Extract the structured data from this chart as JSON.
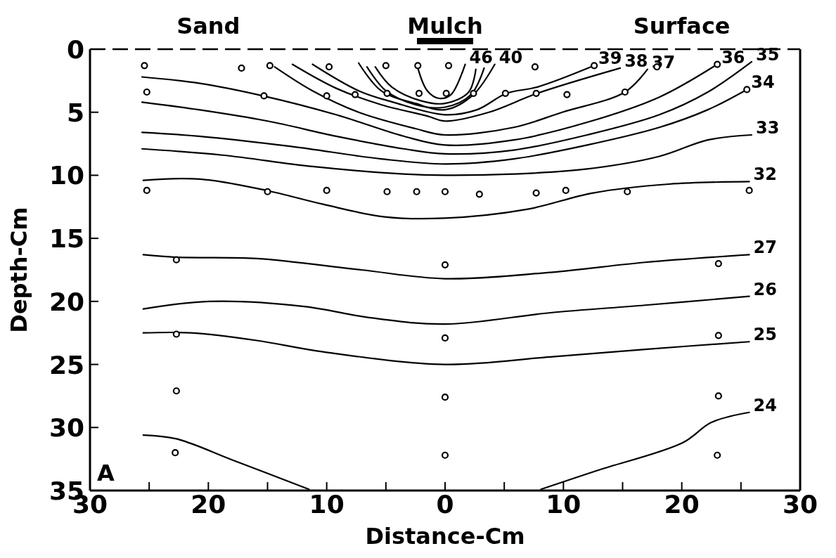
{
  "chart_data": {
    "type": "line",
    "xlabel": "Distance-Cm",
    "ylabel": "Depth-Cm",
    "xlim": [
      -30,
      30
    ],
    "ylim": [
      35,
      0
    ],
    "xticks": [
      {
        "value": -30,
        "label": "30"
      },
      {
        "value": -25,
        "label": null
      },
      {
        "value": -20,
        "label": "20"
      },
      {
        "value": -15,
        "label": null
      },
      {
        "value": -10,
        "label": "10"
      },
      {
        "value": -5,
        "label": null
      },
      0,
      {
        "value": 5,
        "label": null
      },
      {
        "value": 10,
        "label": "10"
      },
      {
        "value": 15,
        "label": null
      },
      {
        "value": 20,
        "label": "20"
      },
      {
        "value": 25,
        "label": null
      },
      {
        "value": 30,
        "label": "30"
      }
    ],
    "yticks": [
      0,
      5,
      10,
      15,
      20,
      25,
      30,
      35
    ],
    "annotations": [
      "Sand",
      "Mulch",
      "Surface",
      "A"
    ],
    "ref_lines": [
      {
        "axis": "y",
        "value": 0,
        "line_style": "dashed",
        "color": "#000000"
      }
    ],
    "series": [
      {
        "name": "46",
        "color": "#000000",
        "x": [
          -2.3,
          -1.5,
          -0.5,
          0.5,
          1.7
        ],
        "values": [
          1.5,
          3.3,
          3.9,
          3.6,
          1.2
        ]
      },
      {
        "color": "#000000",
        "x": [
          -5.9,
          -4.5,
          -2,
          0,
          2,
          2.6
        ],
        "values": [
          1.4,
          3.0,
          4.1,
          4.3,
          3.4,
          1.6
        ]
      },
      {
        "color": "#000000",
        "x": [
          -6.6,
          -5,
          -2.5,
          0,
          2.2,
          3.3
        ],
        "values": [
          1.4,
          3.3,
          4.4,
          4.6,
          3.6,
          1.5
        ]
      },
      {
        "name": "40",
        "color": "#000000",
        "x": [
          -7.3,
          -5.4,
          -2.5,
          0,
          2.4,
          4.2
        ],
        "values": [
          1.1,
          3.3,
          4.3,
          4.8,
          3.6,
          1.2
        ]
      },
      {
        "name": "39",
        "color": "#000000",
        "x": [
          -11.2,
          -7.3,
          -4.4,
          0,
          2.7,
          5.2,
          7.8,
          12.6
        ],
        "values": [
          1.2,
          3.3,
          4.2,
          5.2,
          4.8,
          3.5,
          3.0,
          1.3
        ]
      },
      {
        "name": "38",
        "color": "#000000",
        "x": [
          -12.9,
          -9.2,
          -5.4,
          -1.5,
          0,
          3.7,
          7.8,
          14.8
        ],
        "values": [
          1.2,
          3.1,
          4.4,
          5.3,
          5.7,
          5.0,
          3.5,
          1.5
        ]
      },
      {
        "name": "37",
        "color": "#000000",
        "x": [
          -14.4,
          -11.2,
          -7.3,
          -2.5,
          0,
          5.8,
          9.9,
          15.2,
          17.1
        ],
        "values": [
          1.4,
          3.3,
          5.0,
          6.3,
          6.8,
          6.2,
          5.0,
          3.4,
          1.6
        ]
      },
      {
        "name": "36",
        "color": "#000000",
        "x": [
          -25.6,
          -20.8,
          -15.4,
          -9.2,
          -3.5,
          0,
          5.8,
          12,
          18.1,
          23
        ],
        "values": [
          2.2,
          2.7,
          3.7,
          5.2,
          6.9,
          7.6,
          7.2,
          5.8,
          3.8,
          1.2
        ]
      },
      {
        "name": "35",
        "color": "#000000",
        "x": [
          -25.6,
          -20.8,
          -15,
          -9.2,
          -3.5,
          0,
          5.8,
          12,
          18.1,
          22.2,
          25.9
        ],
        "values": [
          4.2,
          4.8,
          5.7,
          6.9,
          7.9,
          8.3,
          8.0,
          6.8,
          5.2,
          3.4,
          1.0
        ]
      },
      {
        "name": "34",
        "color": "#000000",
        "x": [
          -25.6,
          -20.8,
          -13.1,
          -5.4,
          0,
          5.8,
          12,
          18.1,
          22.2,
          25.5
        ],
        "values": [
          6.6,
          6.9,
          7.7,
          8.7,
          9.1,
          8.7,
          7.6,
          6.2,
          4.8,
          3.2
        ]
      },
      {
        "name": "33",
        "color": "#000000",
        "x": [
          -25.6,
          -18.8,
          -11.2,
          -3.5,
          0,
          5.8,
          12,
          18.1,
          22.2,
          25.9
        ],
        "values": [
          7.9,
          8.4,
          9.3,
          9.9,
          10.0,
          9.9,
          9.5,
          8.5,
          7.2,
          6.8
        ]
      },
      {
        "name": "32",
        "color": "#000000",
        "x": [
          -25.5,
          -20.7,
          -15.1,
          -10.3,
          -5.1,
          0,
          6.9,
          12.5,
          18.9,
          25.7
        ],
        "values": [
          10.4,
          10.3,
          11.2,
          12.3,
          13.3,
          13.4,
          12.7,
          11.4,
          10.7,
          10.5
        ]
      },
      {
        "name": "27",
        "color": "#000000",
        "x": [
          -25.5,
          -22.7,
          -15.9,
          -7.1,
          0,
          8.9,
          16.9,
          25.7
        ],
        "values": [
          16.3,
          16.5,
          16.6,
          17.5,
          18.2,
          17.7,
          16.9,
          16.3
        ]
      },
      {
        "name": "26",
        "color": "#000000",
        "x": [
          -25.5,
          -19.9,
          -11.9,
          -6.3,
          0,
          8.9,
          16.9,
          25.7
        ],
        "values": [
          20.6,
          20.0,
          20.4,
          21.3,
          21.8,
          20.9,
          20.3,
          19.6
        ]
      },
      {
        "name": "25",
        "color": "#000000",
        "x": [
          -25.5,
          -21.5,
          -15.9,
          -10.3,
          0,
          8.9,
          16.9,
          25.7
        ],
        "values": [
          22.5,
          22.5,
          23.1,
          24.0,
          25.0,
          24.4,
          23.8,
          23.2
        ]
      },
      {
        "name": "24",
        "color": "#000000",
        "x": [
          -25.5,
          -22.7,
          -17.9,
          -11.5,
          0,
          8.1,
          12.9,
          20.1,
          22.5,
          25.7
        ],
        "values": [
          30.6,
          30.9,
          32.6,
          34.9,
          null,
          34.9,
          33.4,
          31.2,
          29.6,
          28.8
        ]
      },
      {
        "type": "scatter",
        "color": "#000000",
        "marker": "circle",
        "x": [
          -25.4,
          -17.2,
          -14.8,
          -9.8,
          -5,
          -2.3,
          0.3,
          7.6,
          12.6,
          17.9,
          23,
          -25.2,
          -15.3,
          -10,
          -7.6,
          -4.9,
          -2.2,
          0.1,
          2.4,
          5.1,
          7.7,
          10.3,
          15.2,
          25.5,
          -25.2,
          -15,
          -10,
          -4.9,
          -2.4,
          0,
          2.9,
          7.7,
          10.2,
          15.4,
          25.7,
          -22.7,
          0,
          23.1,
          -22.7,
          0,
          23.1,
          -22.7,
          0,
          23.1,
          -22.8,
          0,
          23
        ],
        "values": [
          1.3,
          1.5,
          1.3,
          1.4,
          1.3,
          1.3,
          1.3,
          1.4,
          1.3,
          1.4,
          1.2,
          3.4,
          3.7,
          3.7,
          3.6,
          3.5,
          3.5,
          3.5,
          3.5,
          3.5,
          3.5,
          3.6,
          3.4,
          3.2,
          11.2,
          11.3,
          11.2,
          11.3,
          11.3,
          11.3,
          11.5,
          11.4,
          11.2,
          11.3,
          11.2,
          16.7,
          17.1,
          17.0,
          22.6,
          22.9,
          22.7,
          27.1,
          27.6,
          27.5,
          32.0,
          32.2,
          32.2
        ]
      }
    ]
  }
}
